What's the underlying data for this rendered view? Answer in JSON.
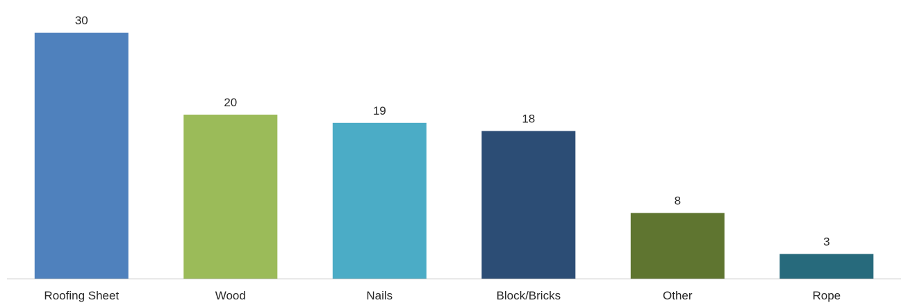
{
  "chart_data": {
    "type": "bar",
    "title": "",
    "xlabel": "",
    "ylabel": "",
    "categories": [
      "Roofing Sheet",
      "Wood",
      "Nails",
      "Block/Bricks",
      "Other",
      "Rope"
    ],
    "values": [
      30,
      20,
      19,
      18,
      8,
      3
    ],
    "value_labels": [
      "30",
      "20",
      "19",
      "18",
      "8",
      "3"
    ],
    "colors": [
      "#4f81bd",
      "#9bbb59",
      "#4bacc6",
      "#2c4d75",
      "#5f7530",
      "#276a7c"
    ],
    "ylim": [
      0,
      30
    ],
    "grid": false,
    "legend": "none",
    "axis_line_color": "#bfbfbf"
  }
}
